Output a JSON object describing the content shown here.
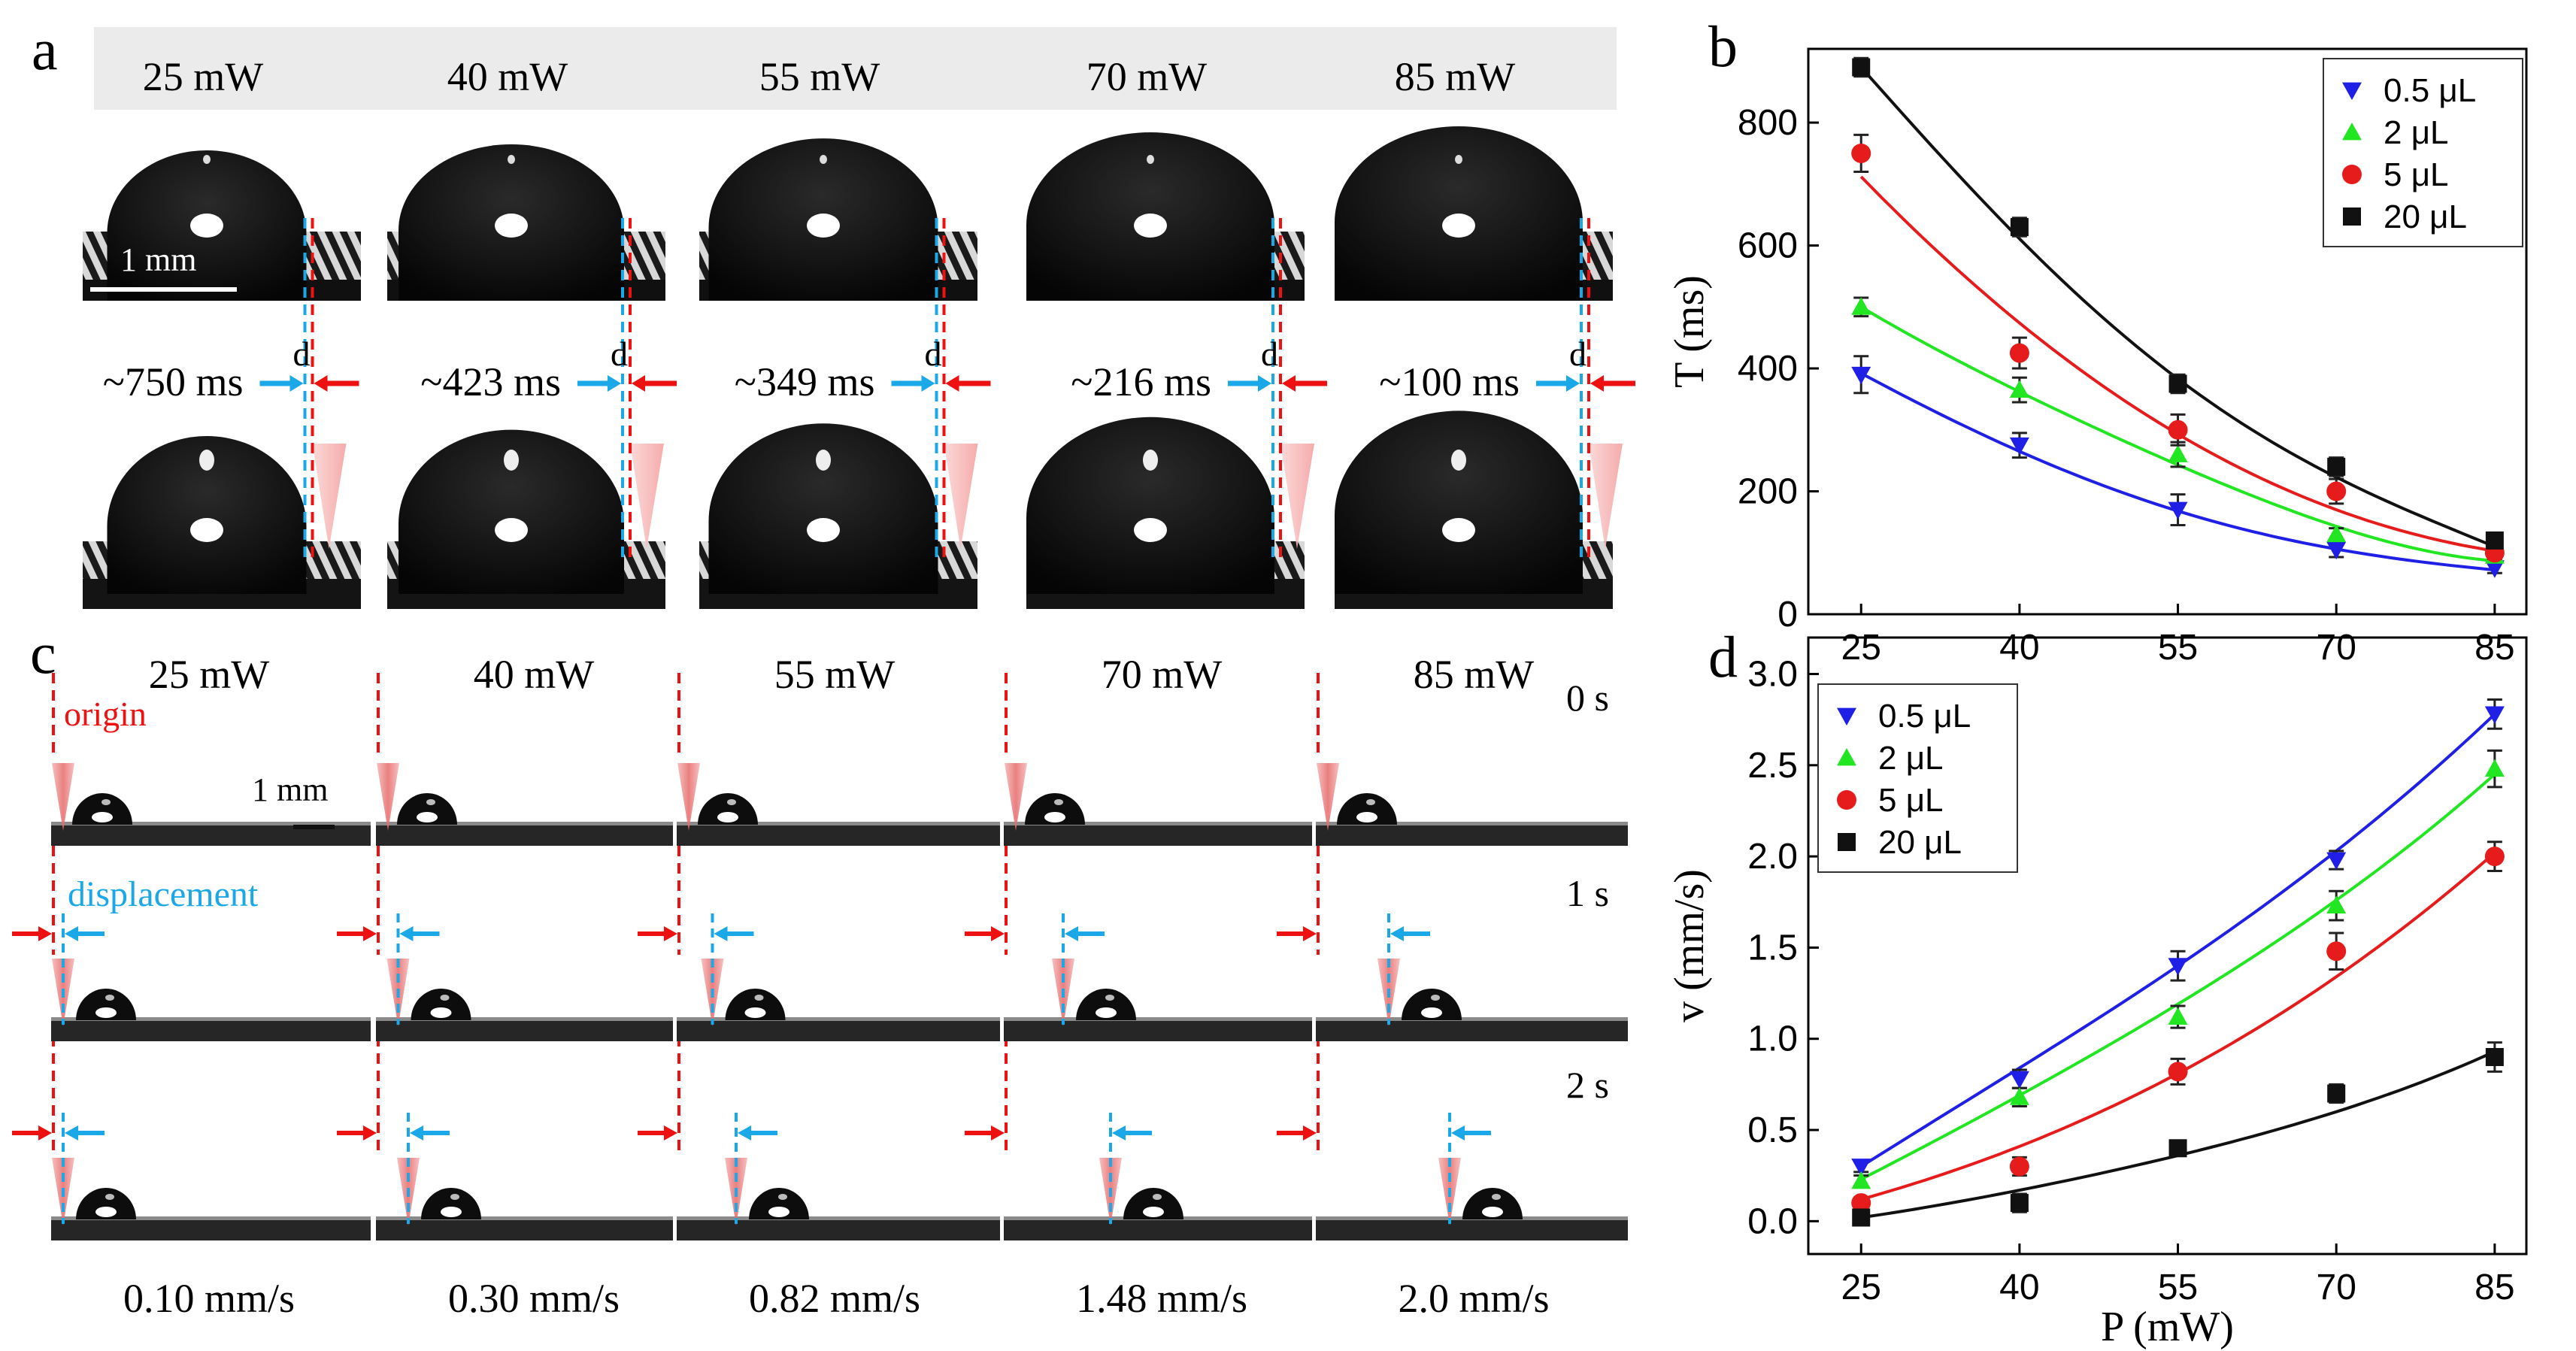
{
  "panel_labels": [
    "a",
    "b",
    "c",
    "d"
  ],
  "panel_a": {
    "powers": [
      "25 mW",
      "40 mW",
      "55 mW",
      "70 mW",
      "85 mW"
    ],
    "times": [
      "~750 ms",
      "~423 ms",
      "~349 ms",
      "~216 ms",
      "~100 ms"
    ],
    "gap_label": "d",
    "scale_bar": "1 mm"
  },
  "panel_c": {
    "powers": [
      "25 mW",
      "40 mW",
      "55 mW",
      "70 mW",
      "85 mW"
    ],
    "times": [
      "0 s",
      "1 s",
      "2 s"
    ],
    "speeds": [
      "0.10 mm/s",
      "0.30 mm/s",
      "0.82 mm/s",
      "1.48 mm/s",
      "2.0 mm/s"
    ],
    "origin_label": "origin",
    "displacement_label": "displacement",
    "scale_bar": "1 mm"
  },
  "colors": {
    "blue": "#1f1fe6",
    "green": "#22e622",
    "red": "#e61c1c",
    "black": "#111111",
    "cyan": "#1aa8e8",
    "red_arrow": "#ee1111"
  },
  "chart_data": [
    {
      "id": "b",
      "type": "scatter",
      "title": "",
      "xlabel": "",
      "ylabel": "T (ms)",
      "x": [
        25,
        40,
        55,
        70,
        85
      ],
      "xticks": [
        "25",
        "40",
        "55",
        "70",
        "85"
      ],
      "yticks": [
        "0",
        "200",
        "400",
        "600",
        "800"
      ],
      "xlim": [
        20,
        88
      ],
      "ylim": [
        0,
        920
      ],
      "legend_position": "top-right",
      "series": [
        {
          "name": "0.5 μL",
          "marker": "triangle-down",
          "color": "#1f1fe6",
          "values": [
            390,
            275,
            170,
            105,
            75
          ],
          "errors": [
            30,
            20,
            25,
            12,
            8
          ],
          "fit": [
            392,
            265,
            168,
            106,
            72
          ]
        },
        {
          "name": "2 μL",
          "marker": "triangle-up",
          "color": "#22e622",
          "values": [
            500,
            365,
            260,
            130,
            95
          ],
          "errors": [
            15,
            20,
            20,
            10,
            8
          ],
          "fit": [
            500,
            362,
            243,
            143,
            87
          ]
        },
        {
          "name": "5 μL",
          "marker": "circle",
          "color": "#e61c1c",
          "values": [
            750,
            425,
            300,
            200,
            100
          ],
          "errors": [
            30,
            25,
            25,
            20,
            10
          ],
          "fit": [
            712,
            474,
            293,
            170,
            103
          ]
        },
        {
          "name": "20 μL",
          "marker": "square",
          "color": "#111111",
          "values": [
            890,
            630,
            375,
            240,
            120
          ],
          "errors": [
            15,
            15,
            15,
            15,
            8
          ],
          "fit": [
            890,
            611,
            383,
            223,
            110
          ]
        }
      ]
    },
    {
      "id": "d",
      "type": "scatter",
      "title": "",
      "xlabel": "P (mW)",
      "ylabel": "v (mm/s)",
      "x": [
        25,
        40,
        55,
        70,
        85
      ],
      "xticks": [
        "25",
        "40",
        "55",
        "70",
        "85"
      ],
      "yticks": [
        "0.0",
        "0.5",
        "1.0",
        "1.5",
        "2.0",
        "2.5",
        "3.0"
      ],
      "xlim": [
        20,
        88
      ],
      "ylim": [
        -0.18,
        3.2
      ],
      "legend_position": "top-left",
      "series": [
        {
          "name": "0.5 μL",
          "marker": "triangle-down",
          "color": "#1f1fe6",
          "values": [
            0.3,
            0.78,
            1.4,
            1.98,
            2.78
          ],
          "errors": [
            0.03,
            0.05,
            0.08,
            0.05,
            0.08
          ],
          "fit": [
            0.3,
            0.84,
            1.4,
            2.03,
            2.78
          ]
        },
        {
          "name": "2 μL",
          "marker": "triangle-up",
          "color": "#22e622",
          "values": [
            0.22,
            0.68,
            1.12,
            1.73,
            2.48
          ],
          "errors": [
            0.03,
            0.05,
            0.06,
            0.08,
            0.1
          ],
          "fit": [
            0.23,
            0.69,
            1.19,
            1.76,
            2.45
          ]
        },
        {
          "name": "5 μL",
          "marker": "circle",
          "color": "#e61c1c",
          "values": [
            0.1,
            0.3,
            0.82,
            1.48,
            2.0
          ],
          "errors": [
            0.03,
            0.05,
            0.07,
            0.1,
            0.08
          ],
          "fit": [
            0.12,
            0.41,
            0.81,
            1.34,
            2.02
          ]
        },
        {
          "name": "20 μL",
          "marker": "square",
          "color": "#111111",
          "values": [
            0.02,
            0.1,
            0.4,
            0.7,
            0.9
          ],
          "errors": [
            0.03,
            0.05,
            0.03,
            0.05,
            0.08
          ],
          "fit": [
            0.02,
            0.17,
            0.36,
            0.6,
            0.93
          ]
        }
      ]
    }
  ]
}
